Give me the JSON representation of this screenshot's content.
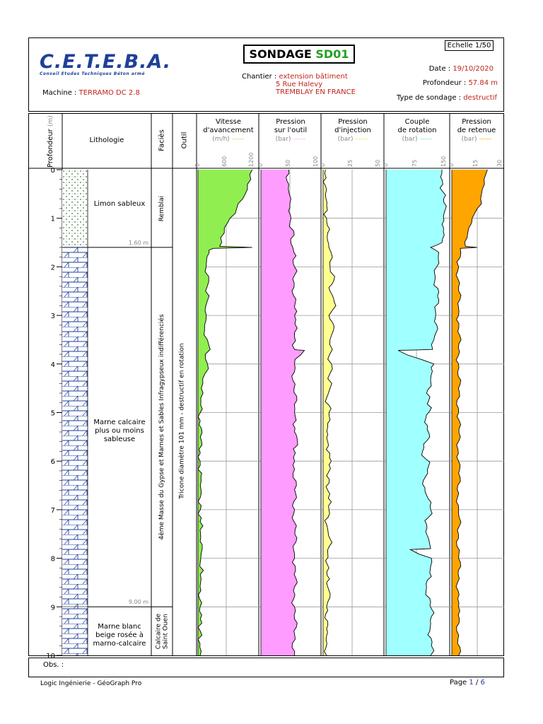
{
  "header": {
    "logo_text": "C.E.T.E.B.A.",
    "logo_subtitle": "Conseil Etudes Techniques Béton armé",
    "machine_label": "Machine :",
    "machine_value": "TERRAMO DC 2.8",
    "title_prefix": "SONDAGE",
    "title_id": "SD01",
    "chantier_label": "Chantier :",
    "chantier_line1": "extension bâtiment",
    "chantier_line2": "5 Rue Halevy",
    "chantier_line3": "TREMBLAY EN FRANCE",
    "echelle": "Echelle 1/50",
    "date_label": "Date :",
    "date_value": "19/10/2020",
    "profondeur_label": "Profondeur :",
    "profondeur_value": "57.84 m",
    "type_label": "Type de sondage :",
    "type_value": "destructif"
  },
  "columns": {
    "profondeur": "Profondeur",
    "profondeur_unit": "(m)",
    "lithologie": "Lithologie",
    "facies": "Faciès",
    "outil": "Outil",
    "vitesse_l1": "Vitesse",
    "vitesse_l2": "d'avancement",
    "vitesse_unit": "(m/h)",
    "pout_l1": "Pression",
    "pout_l2": "sur l'outil",
    "pout_unit": "(bar)",
    "pinj_l1": "Pression",
    "pinj_l2": "d'injection",
    "pinj_unit": "(bar)",
    "couple_l1": "Couple",
    "couple_l2": "de rotation",
    "couple_unit": "(bar)",
    "pret_l1": "Pression",
    "pret_l2": "de retenue",
    "pret_unit": "(bar)"
  },
  "layers": [
    {
      "name": "Limon sableux",
      "top": 0,
      "bottom": 1.6,
      "bottom_label": "1.60 m",
      "pattern": "dots"
    },
    {
      "name": "Marne calcaire plus ou moins sableuse",
      "top": 1.6,
      "bottom": 9.0,
      "bottom_label": "9.00 m",
      "pattern": "brick"
    },
    {
      "name": "Marne blanc beige rosée à marno-calcaire",
      "top": 9.0,
      "bottom": 10.0,
      "bottom_label": "",
      "pattern": "brick"
    }
  ],
  "facies": [
    {
      "text": "Remblai",
      "top": 0,
      "bottom": 1.6
    },
    {
      "text": "4ème Masse du Gypse et Marnes et Sables Infragypseux indifférenciés",
      "top": 1.6,
      "bottom": 9.0
    },
    {
      "text": "Calcaire de Saint Ouen",
      "top": 9.0,
      "bottom": 10.0
    }
  ],
  "outil": "Tricone diamètre 101 mm - destructif en rotation",
  "footer": {
    "obs_label": "Obs. :",
    "software": "Logic Ingénierie - GéoGraph Pro",
    "page_label": "Page",
    "page_current": "1",
    "page_sep": "/",
    "page_total": "6"
  },
  "chart_data": [
    {
      "type": "area",
      "title": "Vitesse d'avancement",
      "unit": "m/h",
      "color": "#90ee50",
      "xlim": [
        0,
        1200
      ],
      "ticks": [
        "0",
        "600",
        "1200"
      ],
      "ylabel": "Profondeur (m)",
      "ylim": [
        0,
        10
      ],
      "y_ticks": [
        "0",
        "1",
        "2",
        "3",
        "4",
        "5",
        "6",
        "7",
        "8",
        "9",
        "10"
      ],
      "depth": [
        0,
        0.2,
        0.4,
        0.6,
        0.8,
        1.0,
        1.2,
        1.4,
        1.58,
        1.6,
        1.62,
        1.7,
        1.9,
        2.1,
        2.3,
        2.5,
        2.7,
        2.9,
        3.1,
        3.3,
        3.5,
        3.7,
        3.9,
        4.1,
        4.3,
        4.5,
        4.7,
        5.0,
        5.5,
        6.0,
        6.5,
        7.0,
        7.5,
        7.8,
        8.0,
        8.5,
        9.0,
        9.5,
        10.0
      ],
      "values": [
        1150,
        1120,
        1050,
        950,
        820,
        680,
        560,
        480,
        460,
        1150,
        320,
        240,
        180,
        150,
        230,
        160,
        200,
        150,
        170,
        140,
        200,
        260,
        160,
        220,
        100,
        70,
        60,
        50,
        50,
        45,
        50,
        50,
        55,
        90,
        60,
        55,
        45,
        50,
        45
      ]
    },
    {
      "type": "area",
      "title": "Pression sur l'outil",
      "unit": "bar",
      "color": "#ff9cff",
      "xlim": [
        0,
        100
      ],
      "ticks": [
        "0",
        "50",
        "100"
      ],
      "depth": [
        0,
        0.3,
        0.5,
        0.7,
        1.0,
        1.6,
        1.7,
        2.0,
        3.0,
        3.7,
        3.72,
        4.0,
        5.0,
        5.4,
        5.5,
        6.0,
        7.0,
        8.0,
        9.0,
        10.0
      ],
      "values": [
        48,
        48,
        49,
        50,
        52,
        55,
        57,
        58,
        58,
        58,
        75,
        58,
        58,
        58,
        62,
        58,
        58,
        58,
        58,
        58
      ]
    },
    {
      "type": "area",
      "title": "Pression d'injection",
      "unit": "bar",
      "color": "#ffff90",
      "xlim": [
        0,
        50
      ],
      "ticks": [
        "0",
        "25",
        "50"
      ],
      "depth": [
        0,
        0.5,
        1.0,
        1.3,
        1.6,
        1.8,
        2.0,
        2.2,
        2.5,
        2.8,
        3.0,
        3.3,
        3.5,
        3.7,
        3.9,
        4.1,
        4.3,
        4.5,
        4.7,
        5.0,
        5.3,
        5.6,
        6.0,
        6.3,
        6.6,
        7.0,
        7.3,
        7.6,
        7.9,
        8.2,
        8.5,
        8.8,
        9.0,
        9.3,
        9.6,
        10.0
      ],
      "values": [
        2,
        2,
        3,
        4,
        5,
        8,
        6,
        10,
        6,
        11,
        5,
        9,
        6,
        8,
        4,
        8,
        4,
        6,
        3,
        5,
        4,
        4,
        7,
        3,
        4,
        5,
        3,
        6,
        4,
        5,
        3,
        6,
        3,
        4,
        3,
        3
      ]
    },
    {
      "type": "area",
      "title": "Couple de rotation",
      "unit": "bar",
      "color": "#a0ffff",
      "xlim": [
        0,
        150
      ],
      "ticks": [
        "0",
        "75",
        "150"
      ],
      "depth": [
        0,
        0.3,
        0.6,
        0.9,
        1.2,
        1.5,
        1.6,
        1.7,
        2.0,
        2.3,
        2.6,
        2.9,
        3.2,
        3.5,
        3.7,
        3.72,
        4.0,
        4.3,
        4.6,
        4.9,
        5.2,
        5.5,
        5.8,
        6.1,
        6.4,
        6.7,
        7.0,
        7.3,
        7.6,
        7.8,
        7.82,
        8.0,
        8.3,
        8.6,
        8.9,
        9.2,
        9.5,
        9.8,
        10.0
      ],
      "values": [
        138,
        140,
        142,
        143,
        142,
        138,
        110,
        130,
        125,
        120,
        127,
        122,
        125,
        118,
        115,
        30,
        118,
        110,
        100,
        112,
        95,
        108,
        90,
        105,
        92,
        100,
        110,
        100,
        105,
        110,
        60,
        112,
        108,
        100,
        110,
        112,
        108,
        112,
        110
      ]
    },
    {
      "type": "area",
      "title": "Pression de retenue",
      "unit": "bar",
      "color": "#ffa500",
      "xlim": [
        0,
        30
      ],
      "ticks": [
        "0",
        "15",
        "30"
      ],
      "depth": [
        0,
        0.2,
        0.4,
        0.6,
        0.8,
        1.0,
        1.2,
        1.4,
        1.58,
        1.6,
        1.62,
        1.8,
        2.0,
        3.0,
        4.0,
        5.0,
        6.0,
        7.0,
        8.0,
        9.0,
        10.0
      ],
      "values": [
        21,
        19,
        18,
        17,
        15,
        12,
        10,
        9,
        8,
        15,
        5,
        5,
        4,
        4,
        4,
        4,
        4,
        4,
        4,
        4,
        4
      ]
    }
  ]
}
